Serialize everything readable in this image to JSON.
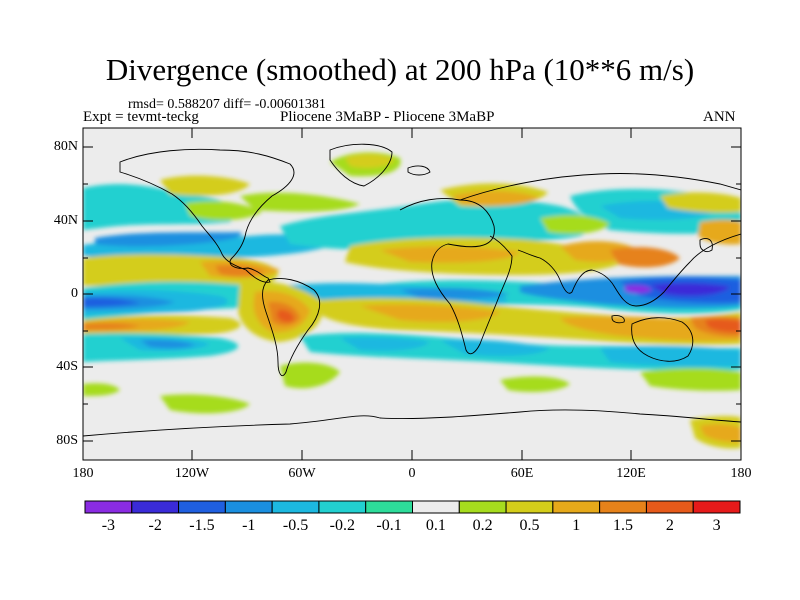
{
  "header": {
    "title": "Divergence (smoothed) at 200 hPa (10**6 m/s)",
    "stats": "rmsd= 0.588207 diff= -0.00601381",
    "experiment": "Expt = tevmt-teckg",
    "case": "Pliocene   3MaBP - Pliocene   3MaBP",
    "season": "ANN"
  },
  "axes": {
    "lat_labels": [
      "80N",
      "40N",
      "0",
      "40S",
      "80S"
    ],
    "lon_labels": [
      "180",
      "120W",
      "60W",
      "0",
      "60E",
      "120E",
      "180"
    ]
  },
  "colorbar": {
    "labels": [
      "-3",
      "-2",
      "-1.5",
      "-1",
      "-0.5",
      "-0.2",
      "-0.1",
      "0.1",
      "0.2",
      "0.5",
      "1",
      "1.5",
      "2",
      "3"
    ],
    "colors": [
      "#8a2be2",
      "#3a2bd8",
      "#1f5fe0",
      "#1a8fe0",
      "#1cb8e0",
      "#22d0d0",
      "#2ddc9a",
      "#ececec",
      "#a6dc1e",
      "#d4cd1a",
      "#e6a91a",
      "#e6821a",
      "#e65a1a",
      "#e61a1a"
    ]
  },
  "map": {
    "background_color": "#ececec",
    "field_description": "200 hPa smoothed divergence difference, annual mean"
  }
}
